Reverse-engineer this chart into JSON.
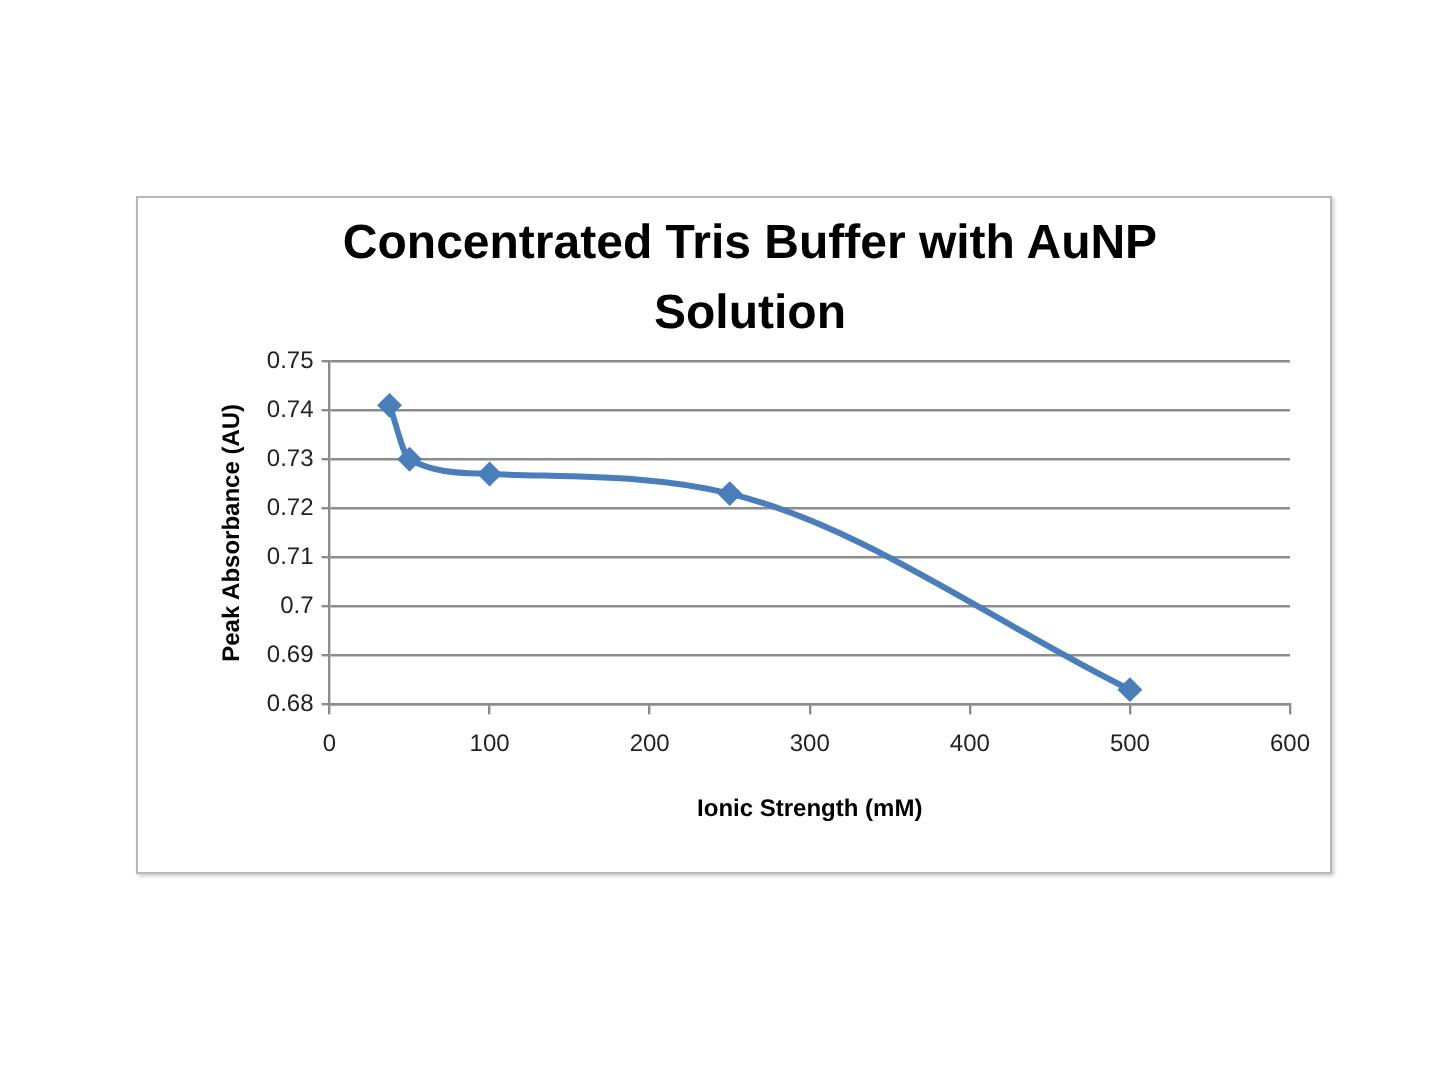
{
  "chart_data": {
    "type": "line",
    "title": "Concentrated Tris Buffer with AuNP Solution",
    "xlabel": "Ionic Strength (mM)",
    "ylabel": "Peak Absorbance (AU)",
    "x": [
      37.5,
      50,
      100,
      250,
      500
    ],
    "values": [
      0.741,
      0.73,
      0.727,
      0.723,
      0.683
    ],
    "color": "#4a7ebb",
    "xlim": [
      0,
      600
    ],
    "xticks": [
      0,
      100,
      200,
      300,
      400,
      500,
      600
    ],
    "ylim": [
      0.68,
      0.75
    ],
    "yticks": [
      0.68,
      0.69,
      0.7,
      0.71,
      0.72,
      0.73,
      0.74,
      0.75
    ],
    "grid": "y",
    "marker": "diamond",
    "line_style": "solid"
  }
}
